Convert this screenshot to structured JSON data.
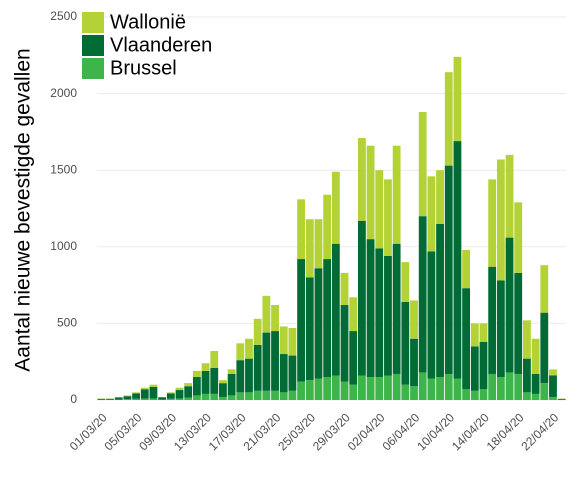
{
  "chart_data": {
    "type": "stacked-bar",
    "y_label": "Aantal nieuwe bevestigde gevallen",
    "categories": [
      "01/03/20",
      null,
      null,
      null,
      "05/03/20",
      null,
      null,
      null,
      "09/03/20",
      null,
      null,
      null,
      "13/03/20",
      null,
      null,
      null,
      "17/03/20",
      null,
      null,
      null,
      "21/03/20",
      null,
      null,
      null,
      "25/03/20",
      null,
      null,
      null,
      "29/03/20",
      null,
      null,
      null,
      "02/04/20",
      null,
      null,
      null,
      "06/04/20",
      null,
      null,
      null,
      "10/04/20",
      null,
      null,
      null,
      "14/04/20",
      null,
      null,
      null,
      "18/04/20",
      null,
      null,
      null,
      "22/04/20",
      null
    ],
    "series": [
      {
        "name": "Brussel",
        "color": "#3db54a",
        "values": [
          2,
          2,
          3,
          5,
          8,
          10,
          10,
          3,
          8,
          10,
          15,
          30,
          40,
          40,
          20,
          30,
          50,
          50,
          60,
          60,
          60,
          50,
          60,
          120,
          130,
          140,
          150,
          160,
          120,
          100,
          160,
          150,
          150,
          160,
          170,
          100,
          90,
          180,
          140,
          150,
          170,
          140,
          70,
          60,
          70,
          170,
          150,
          180,
          170,
          50,
          40,
          110,
          20,
          2
        ]
      },
      {
        "name": "Vlaanderen",
        "color": "#006b35",
        "values": [
          6,
          6,
          13,
          20,
          35,
          60,
          75,
          15,
          35,
          55,
          75,
          120,
          150,
          170,
          90,
          140,
          210,
          220,
          300,
          380,
          390,
          250,
          230,
          800,
          670,
          720,
          770,
          860,
          500,
          350,
          1010,
          900,
          840,
          780,
          850,
          540,
          310,
          1020,
          830,
          1000,
          1360,
          1550,
          660,
          290,
          310,
          700,
          630,
          880,
          660,
          220,
          130,
          460,
          140,
          5
        ]
      },
      {
        "name": "Wallonië",
        "color": "#b3d236",
        "values": [
          2,
          2,
          4,
          5,
          7,
          10,
          15,
          2,
          7,
          15,
          20,
          40,
          50,
          110,
          20,
          30,
          110,
          130,
          170,
          240,
          170,
          180,
          180,
          390,
          380,
          320,
          420,
          470,
          210,
          220,
          540,
          610,
          510,
          500,
          640,
          260,
          250,
          680,
          490,
          350,
          610,
          550,
          250,
          150,
          120,
          570,
          790,
          540,
          460,
          250,
          230,
          310,
          40,
          3
        ]
      }
    ],
    "ylim": [
      0,
      2500
    ],
    "yticks": [
      0,
      500,
      1000,
      1500,
      2000,
      2500
    ],
    "grid": true,
    "legend": "top-left"
  }
}
